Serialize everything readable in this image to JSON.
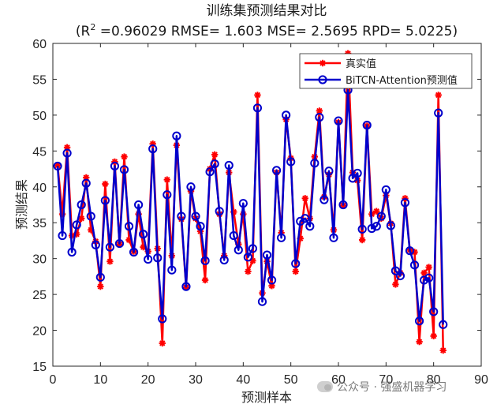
{
  "chart_data": {
    "type": "line",
    "title": "训练集预测结果对比",
    "subtitle_prefix": "(R",
    "subtitle_sup": "2",
    "subtitle_suffix": " =0.96029 RMSE= 1.603 MSE= 2.5695 RPD= 5.0225)",
    "xlabel": "预测样本",
    "ylabel": "预测结果",
    "xlim": [
      0,
      90
    ],
    "ylim": [
      15,
      60
    ],
    "xticks": [
      0,
      10,
      20,
      30,
      40,
      50,
      60,
      70,
      80,
      90
    ],
    "yticks": [
      15,
      20,
      25,
      30,
      35,
      40,
      45,
      50,
      55,
      60
    ],
    "grid": false,
    "legend_position": "top-right",
    "series": [
      {
        "name": "真实值",
        "color": "#ff0000",
        "marker": "asterisk",
        "values": [
          43.0,
          36.2,
          45.5,
          33.2,
          33.4,
          35.6,
          41.3,
          34.0,
          32.4,
          26.1,
          40.4,
          29.6,
          43.5,
          32.0,
          44.2,
          32.6,
          31.0,
          36.2,
          31.6,
          31.0,
          46.0,
          31.4,
          18.2,
          41.0,
          30.4,
          45.8,
          35.5,
          26.0,
          39.4,
          35.6,
          33.8,
          27.0,
          42.5,
          44.5,
          36.2,
          30.4,
          42.0,
          36.5,
          32.0,
          36.2,
          28.2,
          29.7,
          52.8,
          25.2,
          29.6,
          26.2,
          42.0,
          33.6,
          49.4,
          44.0,
          28.2,
          32.8,
          38.4,
          35.6,
          44.2,
          50.6,
          38.6,
          41.7,
          34.0,
          49.0,
          37.4,
          58.6,
          42.0,
          40.9,
          32.6,
          48.5,
          36.2,
          36.6,
          35.6,
          38.8,
          34.9,
          26.4,
          28.0,
          38.4,
          31.2,
          30.9,
          18.4,
          28.0,
          28.8,
          19.2,
          52.8,
          17.2
        ]
      },
      {
        "name": "BiTCN-Attention预测值",
        "color": "#0000cc",
        "marker": "circle",
        "values": [
          42.9,
          33.2,
          44.7,
          30.9,
          34.7,
          37.5,
          40.5,
          35.9,
          31.9,
          27.4,
          38.1,
          31.6,
          42.9,
          32.1,
          42.4,
          34.5,
          30.9,
          37.5,
          33.4,
          29.9,
          45.3,
          30.1,
          21.6,
          38.9,
          28.4,
          47.1,
          35.9,
          26.1,
          40.0,
          35.9,
          34.5,
          29.7,
          42.1,
          43.2,
          36.6,
          29.8,
          43.0,
          33.2,
          31.2,
          37.7,
          30.2,
          31.4,
          51.0,
          24.0,
          30.5,
          27.0,
          42.3,
          32.9,
          50.0,
          43.5,
          29.3,
          35.2,
          35.6,
          34.5,
          43.3,
          49.7,
          38.2,
          42.2,
          32.9,
          49.2,
          37.5,
          53.5,
          41.2,
          41.9,
          34.1,
          48.6,
          34.2,
          34.5,
          35.9,
          39.6,
          34.6,
          28.3,
          27.6,
          37.8,
          31.1,
          29.1,
          21.3,
          27.0,
          27.3,
          22.6,
          50.3,
          20.8
        ]
      }
    ]
  },
  "watermark_text": "公众号 · 强盛机器学习"
}
